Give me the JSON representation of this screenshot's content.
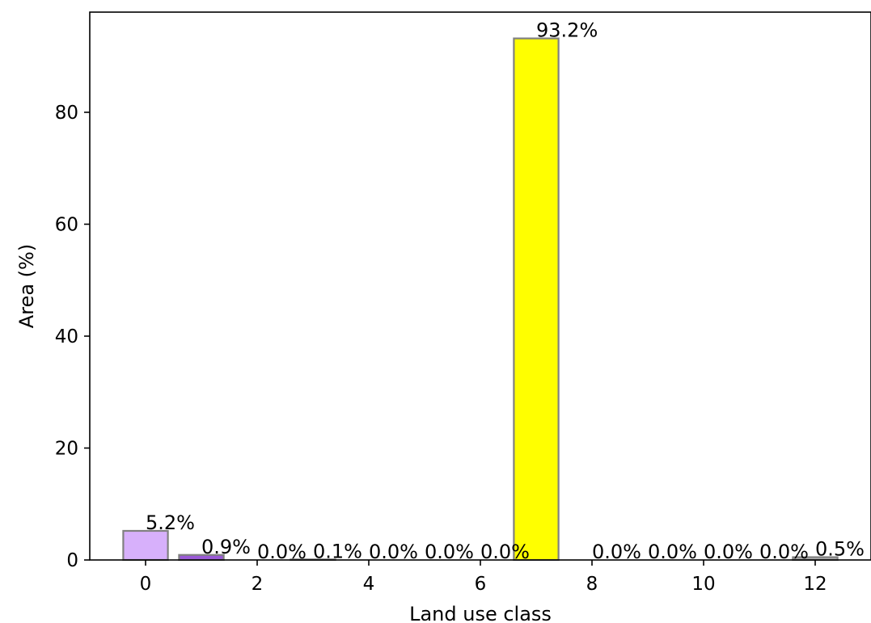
{
  "chart_data": {
    "type": "bar",
    "x": [
      0,
      1,
      2,
      3,
      4,
      5,
      6,
      7,
      8,
      9,
      10,
      11,
      12
    ],
    "values": [
      5.2,
      0.9,
      0.0,
      0.1,
      0.0,
      0.0,
      0.0,
      93.2,
      0.0,
      0.0,
      0.0,
      0.0,
      0.5
    ],
    "data_labels": [
      "5.2%",
      "0.9%",
      "0.0%",
      "0.1%",
      "0.0%",
      "0.0%",
      "0.0%",
      "93.2%",
      "0.0%",
      "0.0%",
      "0.0%",
      "0.0%",
      "0.5%"
    ],
    "colors": [
      "#d7b0fb",
      "#9b59d8",
      "#ffffff",
      "#ffffff",
      "#ffffff",
      "#ffffff",
      "#ffffff",
      "#ffff00",
      "#ffffff",
      "#ffffff",
      "#ffffff",
      "#ffffff",
      "#b0b0b0"
    ],
    "edge_color": "#808080",
    "title": "",
    "xlabel": "Land use class",
    "ylabel": "Area (%)",
    "xlim": [
      -1,
      13
    ],
    "ylim": [
      0,
      97.9
    ],
    "xticks": [
      0,
      2,
      4,
      6,
      8,
      10,
      12
    ],
    "xtick_labels": [
      "0",
      "2",
      "4",
      "6",
      "8",
      "10",
      "12"
    ],
    "yticks": [
      0,
      20,
      40,
      60,
      80
    ],
    "ytick_labels": [
      "0",
      "20",
      "40",
      "60",
      "80"
    ],
    "grid": false,
    "legend": "none"
  }
}
